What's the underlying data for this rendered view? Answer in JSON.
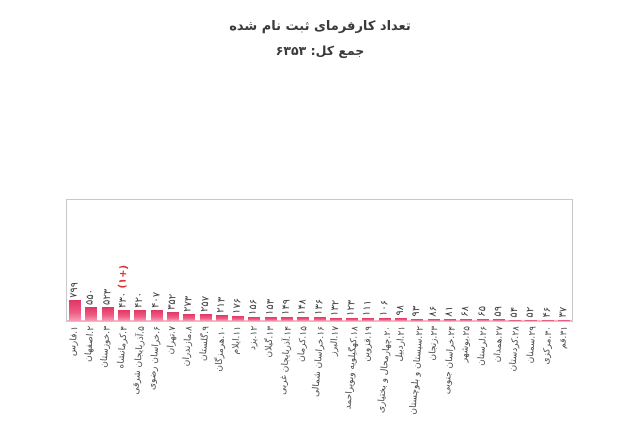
{
  "header": {
    "title": "تعداد کارفرمای ثبت نام شده",
    "total_label": "جمع کل: ۶۳۵۳"
  },
  "chart_data": {
    "type": "bar",
    "title": "تعداد کارفرمای ثبت نام شده",
    "total_label": "جمع کل: ۶۳۵۳",
    "total": 6353,
    "xlabel": "",
    "ylabel": "",
    "grid": false,
    "legend": "none",
    "categories": [
      "۱.فارس",
      "۲.اصفهان",
      "۳.خوزستان",
      "۴.کرمانشاه",
      "۵.آذربایجان شرقی",
      "۶.خراسان رضوی",
      "۷.تهران",
      "۸.مازندران",
      "۹.گلستان",
      "۱۰.هرمزگان",
      "۱۱.ایلام",
      "۱۲.یزد",
      "۱۳.گیلان",
      "۱۴.آذربایجان غربی",
      "۱۵.کرمان",
      "۱۶.خراسان شمالی",
      "۱۷.البرز",
      "۱۸.کهگیلویه وبویراحمد",
      "۱۹.قزوین",
      "۲۰.چهارمحال و بختیاری",
      "۲۱.اردبیل",
      "۲۲.سیستان و بلوچستان",
      "۲۳.زنجان",
      "۲۴.خراسان جنوبی",
      "۲۵.بوشهر",
      "۲۶.لرستان",
      "۲۷.همدان",
      "۲۸.کردستان",
      "۲۹.سمنان",
      "۳۰.مرکزی",
      "۳۱.قم"
    ],
    "values": [
      799,
      550,
      523,
      430,
      420,
      407,
      352,
      273,
      257,
      213,
      176,
      156,
      153,
      149,
      148,
      136,
      132,
      123,
      111,
      106,
      98,
      93,
      86,
      81,
      68,
      65,
      59,
      54,
      52,
      46,
      37
    ],
    "annotation": {
      "category_index": 3,
      "text": "(+۱)",
      "color": "#e03131"
    },
    "colors": {
      "bar_top": "#e23463",
      "bar_bottom": "#f59fb4",
      "baseline": "#f3b7c7",
      "frame": "#c9c9c9",
      "text": "#3d3d3d"
    }
  }
}
